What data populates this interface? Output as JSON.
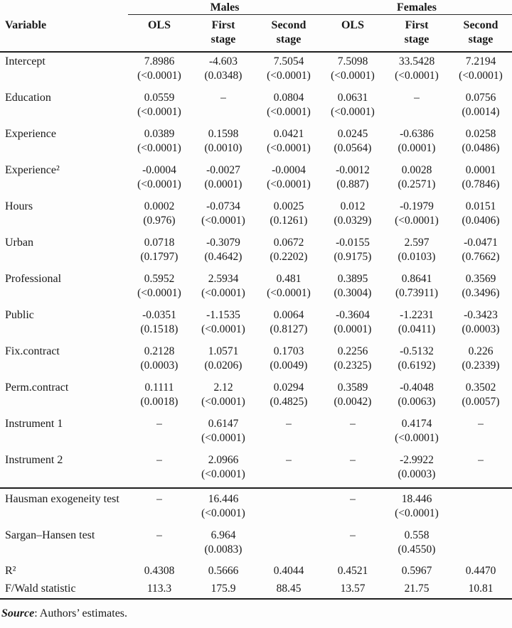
{
  "table": {
    "group_headers": [
      {
        "label": "Males"
      },
      {
        "label": "Females"
      }
    ],
    "col_headers": [
      "Variable",
      "OLS",
      "First\nstage",
      "Second\nstage",
      "OLS",
      "First\nstage",
      "Second\nstage"
    ],
    "rows": [
      {
        "variable": "Intercept",
        "cells": [
          [
            "7.8986",
            "(<0.0001)"
          ],
          [
            "-4.603",
            "(0.0348)"
          ],
          [
            "7.5054",
            "(<0.0001)"
          ],
          [
            "7.5098",
            "(<0.0001)"
          ],
          [
            "33.5428",
            "(<0.0001)"
          ],
          [
            "7.2194",
            "(<0.0001)"
          ]
        ]
      },
      {
        "variable": "Education",
        "cells": [
          [
            "0.0559",
            "(<0.0001)"
          ],
          [
            "–",
            ""
          ],
          [
            "0.0804",
            "(<0.0001)"
          ],
          [
            "0.0631",
            "(<0.0001)"
          ],
          [
            "–",
            ""
          ],
          [
            "0.0756",
            "(0.0014)"
          ]
        ]
      },
      {
        "variable": "Experience",
        "cells": [
          [
            "0.0389",
            "(<0.0001)"
          ],
          [
            "0.1598",
            "(0.0010)"
          ],
          [
            "0.0421",
            "(<0.0001)"
          ],
          [
            "0.0245",
            "(0.0564)"
          ],
          [
            "-0.6386",
            "(0.0001)"
          ],
          [
            "0.0258",
            "(0.0486)"
          ]
        ]
      },
      {
        "variable": "Experience²",
        "cells": [
          [
            "-0.0004",
            "(<0.0001)"
          ],
          [
            "-0.0027",
            "(0.0001)"
          ],
          [
            "-0.0004",
            "(<0.0001)"
          ],
          [
            "-0.0012",
            "(0.887)"
          ],
          [
            "0.0028",
            "(0.2571)"
          ],
          [
            "0.0001",
            "(0.7846)"
          ]
        ]
      },
      {
        "variable": "Hours",
        "cells": [
          [
            "0.0002",
            "(0.976)"
          ],
          [
            "-0.0734",
            "(<0.0001)"
          ],
          [
            "0.0025",
            "(0.1261)"
          ],
          [
            "0.012",
            "(0.0329)"
          ],
          [
            "-0.1979",
            "(<0.0001)"
          ],
          [
            "0.0151",
            "(0.0406)"
          ]
        ]
      },
      {
        "variable": "Urban",
        "cells": [
          [
            "0.0718",
            "(0.1797)"
          ],
          [
            "-0.3079",
            "(0.4642)"
          ],
          [
            "0.0672",
            "(0.2202)"
          ],
          [
            "-0.0155",
            "(0.9175)"
          ],
          [
            "2.597",
            "(0.0103)"
          ],
          [
            "-0.0471",
            "(0.7662)"
          ]
        ]
      },
      {
        "variable": "Professional",
        "cells": [
          [
            "0.5952",
            "(<0.0001)"
          ],
          [
            "2.5934",
            "(<0.0001)"
          ],
          [
            "0.481",
            "(<0.0001)"
          ],
          [
            "0.3895",
            "(0.3004)"
          ],
          [
            "0.8641",
            "(0.73911)"
          ],
          [
            "0.3569",
            "(0.3496)"
          ]
        ]
      },
      {
        "variable": "Public",
        "cells": [
          [
            "-0.0351",
            "(0.1518)"
          ],
          [
            "-1.1535",
            "(<0.0001)"
          ],
          [
            "0.0064",
            "(0.8127)"
          ],
          [
            "-0.3604",
            "(0.0001)"
          ],
          [
            "-1.2231",
            "(0.0411)"
          ],
          [
            "-0.3423",
            "(0.0003)"
          ]
        ]
      },
      {
        "variable": "Fix.contract",
        "cells": [
          [
            "0.2128",
            "(0.0003)"
          ],
          [
            "1.0571",
            "(0.0206)"
          ],
          [
            "0.1703",
            "(0.0049)"
          ],
          [
            "0.2256",
            "(0.2325)"
          ],
          [
            "-0.5132",
            "(0.6192)"
          ],
          [
            "0.226",
            "(0.2339)"
          ]
        ]
      },
      {
        "variable": "Perm.contract",
        "cells": [
          [
            "0.1111",
            "(0.0018)"
          ],
          [
            "2.12",
            "(<0.0001)"
          ],
          [
            "0.0294",
            "(0.4825)"
          ],
          [
            "0.3589",
            "(0.0042)"
          ],
          [
            "-0.4048",
            "(0.0063)"
          ],
          [
            "0.3502",
            "(0.0057)"
          ]
        ]
      },
      {
        "variable": "Instrument 1",
        "cells": [
          [
            "–",
            ""
          ],
          [
            "0.6147",
            "(<0.0001)"
          ],
          [
            "–",
            ""
          ],
          [
            "–",
            ""
          ],
          [
            "0.4174",
            "(<0.0001)"
          ],
          [
            "–",
            ""
          ]
        ]
      },
      {
        "variable": "Instrument 2",
        "cells": [
          [
            "–",
            ""
          ],
          [
            "2.0966",
            "(<0.0001)"
          ],
          [
            "–",
            ""
          ],
          [
            "–",
            ""
          ],
          [
            "-2.9922",
            "(0.0003)"
          ],
          [
            "–",
            ""
          ]
        ]
      }
    ],
    "summary_rows": [
      {
        "variable": "Hausman exogeneity test",
        "kind": "test",
        "section_start": true,
        "cells": [
          [
            "–",
            ""
          ],
          [
            "16.446",
            "(<0.0001)"
          ],
          [
            "",
            ""
          ],
          [
            "–",
            ""
          ],
          [
            "18.446",
            "(<0.0001)"
          ],
          [
            "",
            ""
          ]
        ]
      },
      {
        "variable": "Sargan–Hansen test",
        "kind": "test",
        "cells": [
          [
            "–",
            ""
          ],
          [
            "6.964",
            "(0.0083)"
          ],
          [
            "",
            ""
          ],
          [
            "–",
            ""
          ],
          [
            "0.558",
            "(0.4550)"
          ],
          [
            "",
            ""
          ]
        ]
      },
      {
        "variable": "R²",
        "kind": "stat",
        "cells": [
          [
            "0.4308",
            ""
          ],
          [
            "0.5666",
            ""
          ],
          [
            "0.4044",
            ""
          ],
          [
            "0.4521",
            ""
          ],
          [
            "0.5967",
            ""
          ],
          [
            "0.4470",
            ""
          ]
        ]
      },
      {
        "variable": "F/Wald statistic",
        "kind": "stat",
        "cells": [
          [
            "113.3",
            ""
          ],
          [
            "175.9",
            ""
          ],
          [
            "88.45",
            ""
          ],
          [
            "13.57",
            ""
          ],
          [
            "21.75",
            ""
          ],
          [
            "10.81",
            ""
          ]
        ]
      }
    ],
    "source_label": "Source",
    "source_rest": ": Authors’ estimates."
  }
}
